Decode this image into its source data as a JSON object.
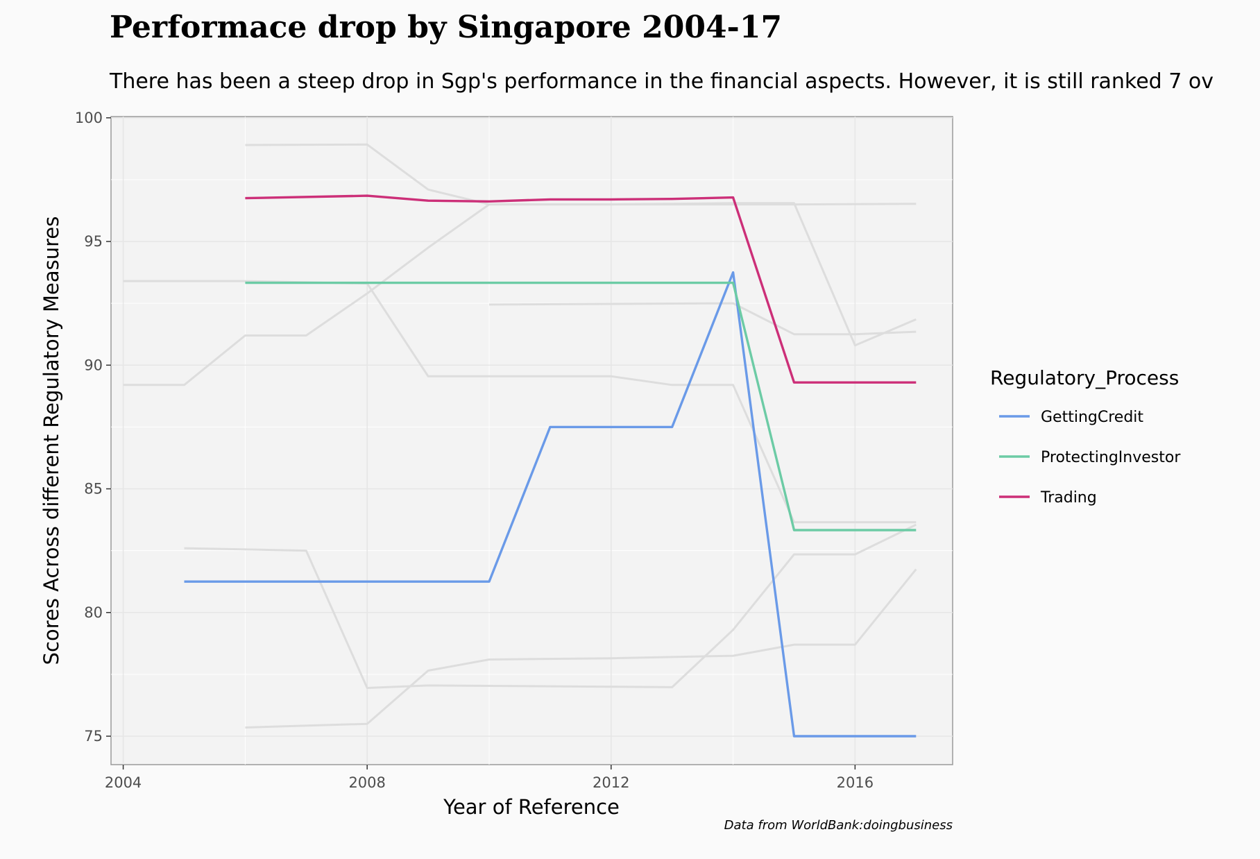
{
  "chart_data": {
    "type": "line",
    "title": "Performace drop by Singapore 2004-17",
    "subtitle": "There has been a steep drop in Sgp's performance in the financial aspects. However, it is still ranked 7 ov",
    "xlabel": "Year of Reference",
    "ylabel": "Scores Across different Regulatory Measures",
    "caption": "Data from WorldBank:doingbusiness",
    "xlim": [
      2003.8,
      2017.6
    ],
    "ylim": [
      73.85,
      100.05
    ],
    "x_ticks": [
      2004,
      2008,
      2012,
      2016
    ],
    "y_ticks": [
      75,
      80,
      85,
      90,
      95,
      100
    ],
    "grid": true,
    "legend": {
      "title": "Regulatory_Process",
      "position": "right"
    },
    "series": [
      {
        "name": "GettingCredit",
        "color": "#6a9ae8",
        "points": [
          [
            2005,
            81.25
          ],
          [
            2006,
            81.25
          ],
          [
            2007,
            81.25
          ],
          [
            2008,
            81.25
          ],
          [
            2009,
            81.25
          ],
          [
            2010,
            81.25
          ],
          [
            2011,
            87.5
          ],
          [
            2012,
            87.5
          ],
          [
            2013,
            87.5
          ],
          [
            2014,
            93.75
          ],
          [
            2015,
            75
          ],
          [
            2016,
            75
          ],
          [
            2017,
            75
          ]
        ]
      },
      {
        "name": "ProtectingInvestor",
        "color": "#6ccba5",
        "points": [
          [
            2006,
            93.33
          ],
          [
            2007,
            93.33
          ],
          [
            2008,
            93.33
          ],
          [
            2009,
            93.33
          ],
          [
            2010,
            93.33
          ],
          [
            2011,
            93.33
          ],
          [
            2012,
            93.33
          ],
          [
            2013,
            93.33
          ],
          [
            2014,
            93.33
          ],
          [
            2015,
            83.33
          ],
          [
            2016,
            83.33
          ],
          [
            2017,
            83.33
          ]
        ]
      },
      {
        "name": "Trading",
        "color": "#cc2f78",
        "points": [
          [
            2006,
            96.75
          ],
          [
            2008,
            96.85
          ],
          [
            2009,
            96.65
          ],
          [
            2010,
            96.62
          ],
          [
            2011,
            96.7
          ],
          [
            2012,
            96.7
          ],
          [
            2013,
            96.72
          ],
          [
            2014,
            96.78
          ],
          [
            2015,
            89.3
          ],
          [
            2016,
            89.3
          ],
          [
            2017,
            89.3
          ]
        ]
      }
    ],
    "background_series": [
      {
        "color": "#dddddd",
        "points": [
          [
            2006,
            98.9
          ],
          [
            2008,
            98.92
          ],
          [
            2009,
            97.1
          ],
          [
            2010,
            96.5
          ],
          [
            2012,
            96.5
          ],
          [
            2014,
            96.55
          ],
          [
            2015,
            96.55
          ],
          [
            2016,
            90.8
          ],
          [
            2017,
            91.85
          ]
        ]
      },
      {
        "color": "#dddddd",
        "points": [
          [
            2004,
            93.4
          ],
          [
            2006,
            93.4
          ],
          [
            2008,
            93.3
          ],
          [
            2009,
            89.55
          ],
          [
            2010,
            89.55
          ],
          [
            2012,
            89.55
          ],
          [
            2013,
            89.2
          ],
          [
            2014,
            89.2
          ],
          [
            2015,
            83.65
          ],
          [
            2016,
            83.65
          ],
          [
            2017,
            83.65
          ]
        ]
      },
      {
        "color": "#dddddd",
        "points": [
          [
            2004,
            89.2
          ],
          [
            2005,
            89.2
          ],
          [
            2006,
            91.2
          ],
          [
            2007,
            91.2
          ],
          [
            2008,
            92.9
          ],
          [
            2009,
            94.75
          ],
          [
            2010,
            96.5
          ],
          [
            2015,
            96.5
          ],
          [
            2017,
            96.52
          ]
        ]
      },
      {
        "color": "#dddddd",
        "points": [
          [
            2010,
            92.45
          ],
          [
            2014,
            92.5
          ],
          [
            2015,
            91.25
          ],
          [
            2016,
            91.25
          ],
          [
            2017,
            91.35
          ]
        ]
      },
      {
        "color": "#dddddd",
        "points": [
          [
            2005,
            82.6
          ],
          [
            2007,
            82.5
          ],
          [
            2008,
            76.95
          ],
          [
            2009,
            77.05
          ],
          [
            2012,
            77.0
          ],
          [
            2013,
            76.98
          ],
          [
            2014,
            79.3
          ],
          [
            2015,
            82.35
          ],
          [
            2016,
            82.35
          ],
          [
            2017,
            83.55
          ]
        ]
      },
      {
        "color": "#dddddd",
        "points": [
          [
            2006,
            75.35
          ],
          [
            2008,
            75.5
          ],
          [
            2009,
            77.65
          ],
          [
            2010,
            78.1
          ],
          [
            2012,
            78.15
          ],
          [
            2014,
            78.25
          ],
          [
            2015,
            78.7
          ],
          [
            2016,
            78.7
          ],
          [
            2017,
            81.75
          ]
        ]
      }
    ]
  }
}
